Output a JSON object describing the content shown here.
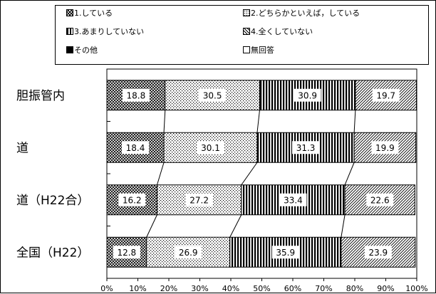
{
  "legend": {
    "items": [
      {
        "label": "1.している",
        "pattern": "cross"
      },
      {
        "label": "2.どちらかといえば，している",
        "pattern": "dots"
      },
      {
        "label": "3.あまりしていない",
        "pattern": "vstripes"
      },
      {
        "label": "4.全くしていない",
        "pattern": "diag"
      },
      {
        "label": "その他",
        "pattern": "solid"
      },
      {
        "label": "無回答",
        "pattern": "white"
      }
    ]
  },
  "chart_data": {
    "type": "bar",
    "orientation": "horizontal",
    "stacked": true,
    "normalized": true,
    "categories": [
      "胆振管内",
      "道",
      "道（H22合）",
      "全国（H22）"
    ],
    "series": [
      {
        "name": "1.している",
        "values": [
          18.8,
          18.4,
          16.2,
          12.8
        ]
      },
      {
        "name": "2.どちらかといえば，している",
        "values": [
          30.5,
          30.1,
          27.2,
          26.9
        ]
      },
      {
        "name": "3.あまりしていない",
        "values": [
          30.9,
          31.3,
          33.4,
          35.9
        ]
      },
      {
        "name": "4.全くしていない",
        "values": [
          19.7,
          19.9,
          22.6,
          23.9
        ]
      },
      {
        "name": "その他",
        "values": [
          0,
          0,
          0,
          0
        ]
      },
      {
        "name": "無回答",
        "values": [
          0,
          0,
          0,
          0
        ]
      }
    ],
    "xlim": [
      0,
      100
    ],
    "xticks": [
      "0%",
      "10%",
      "20%",
      "30%",
      "40%",
      "50%",
      "60%",
      "70%",
      "80%",
      "90%",
      "100%"
    ],
    "legend_position": "top",
    "series_lines": true
  }
}
